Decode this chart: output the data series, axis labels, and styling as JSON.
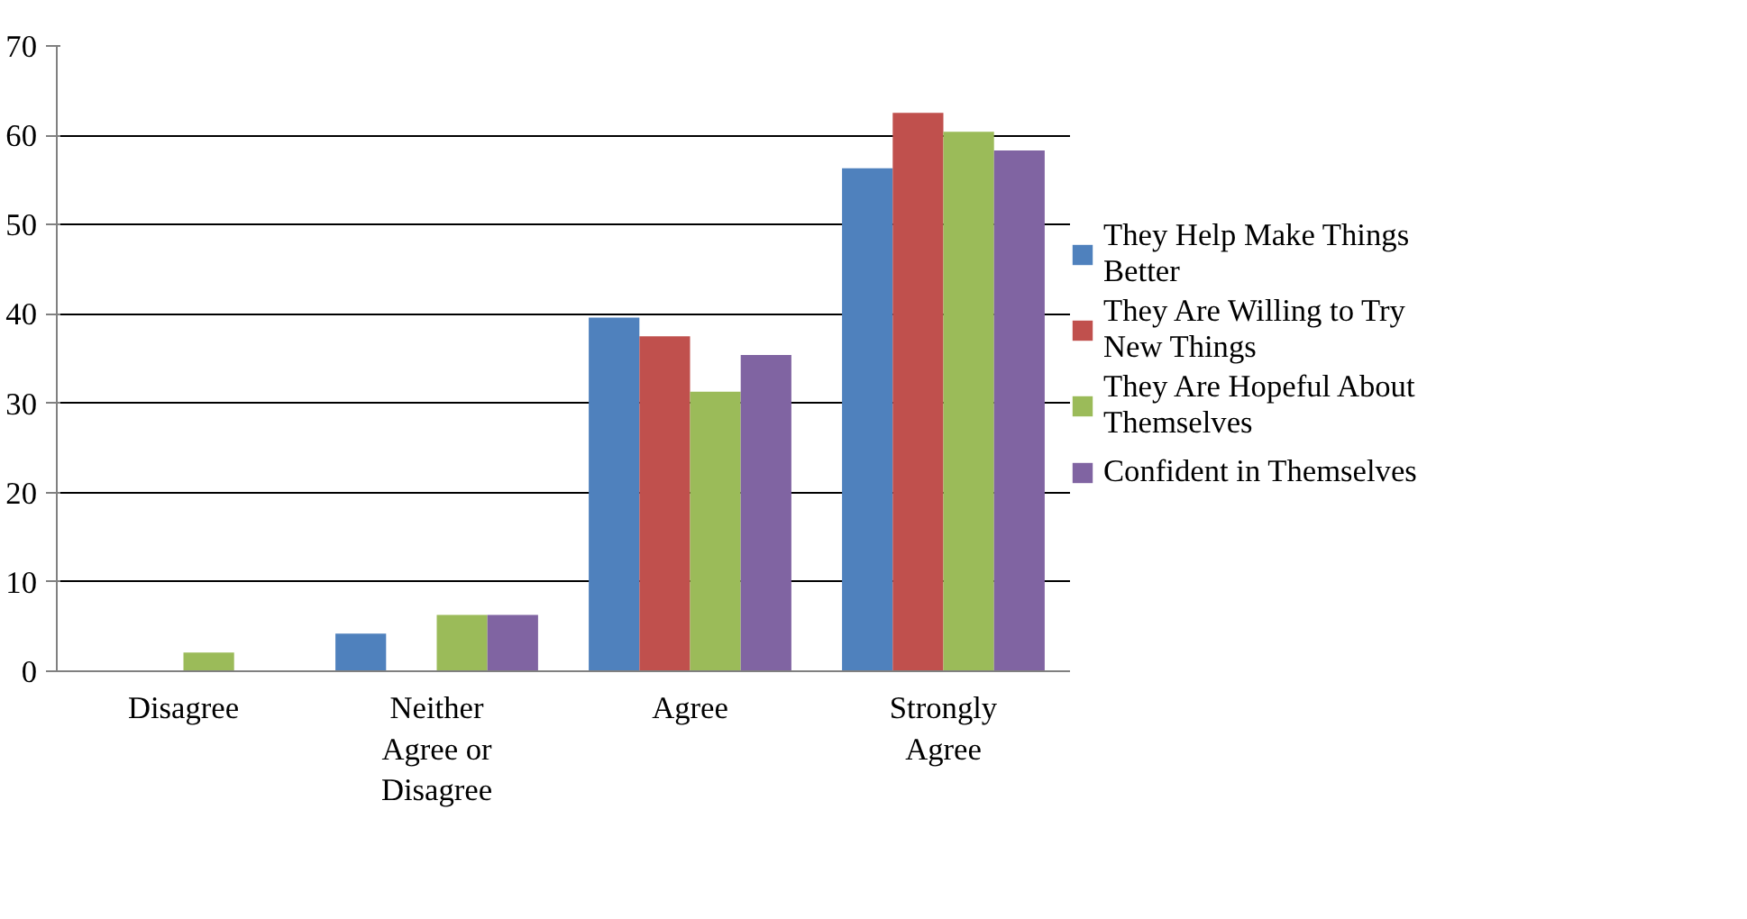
{
  "chart_data": {
    "type": "bar",
    "categories": [
      "Disagree",
      "Neither Agree or Disagree",
      "Agree",
      "Strongly Agree"
    ],
    "series": [
      {
        "name": "They Help Make Things Better",
        "color": "#4f81bd",
        "values": [
          0,
          4.2,
          39.6,
          56.3
        ]
      },
      {
        "name": "They Are Willing to Try New Things",
        "color": "#c0504d",
        "values": [
          0,
          0,
          37.5,
          62.5
        ]
      },
      {
        "name": "They Are Hopeful About Themselves",
        "color": "#9bbb59",
        "values": [
          2.1,
          6.3,
          31.3,
          60.4
        ]
      },
      {
        "name": "Confident in Themselves",
        "color": "#8064a2",
        "values": [
          0,
          6.3,
          35.4,
          58.3
        ]
      }
    ],
    "ylim": [
      0,
      70
    ],
    "yticks": [
      0,
      10,
      20,
      30,
      40,
      50,
      60,
      70
    ],
    "grid": "y",
    "legend": "right"
  }
}
